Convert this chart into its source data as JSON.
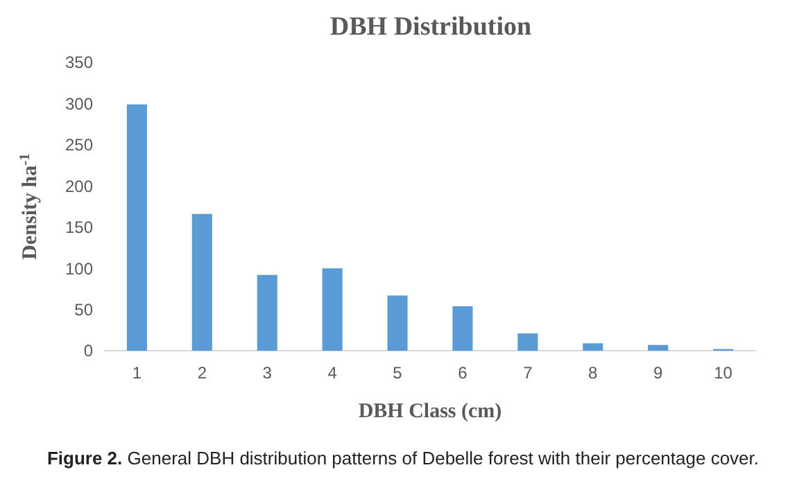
{
  "chart_data": {
    "type": "bar",
    "title": "DBH Distribution",
    "xlabel": "DBH Class (cm)",
    "ylabel": "Density ha$^{-1}$",
    "categories": [
      "1",
      "2",
      "3",
      "4",
      "5",
      "6",
      "7",
      "8",
      "9",
      "10"
    ],
    "values": [
      299,
      166,
      92,
      100,
      67,
      54,
      21,
      9,
      7,
      2
    ],
    "color": "#5b9bd5",
    "ylim": [
      0,
      350
    ],
    "yticks": [
      0,
      50,
      100,
      150,
      200,
      250,
      300,
      350
    ],
    "grid": false,
    "annotations": [
      "Figure 2. General DBH distribution patterns of Debelle forest with their percentage cover."
    ]
  }
}
